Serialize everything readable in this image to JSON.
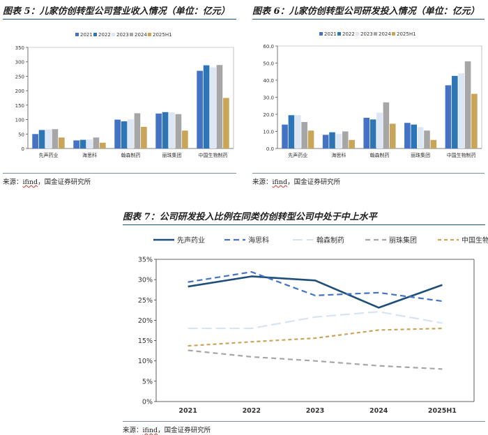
{
  "charts": {
    "left": {
      "title": "图表 5：儿家仿创转型公司营业收入情况（单位：亿元）",
      "source_prefix": "来源：",
      "source_underlined": "ifind",
      "source_suffix": "，国金证券研究所"
    },
    "right": {
      "title": "图表 6：儿家仿创转型公司研发投入情况（单位：亿元）",
      "source_prefix": "来源：",
      "source_underlined": "ifind",
      "source_suffix": "，国金证券研究所"
    },
    "bottom": {
      "title": "图表 7：公司研发投入比例在同类仿创转型公司中处于中上水平",
      "source_prefix": "来源：",
      "source_underlined": "ifind",
      "source_suffix": "，国金证券研究所"
    }
  },
  "colors": {
    "2021": "#4472c4",
    "2022": "#2e75b6",
    "2023": "#dde7f3",
    "2024": "#a6a6a6",
    "2025H1": "#c9a55a",
    "先声药业": "#1f4e79",
    "海思科": "#4472c4",
    "翰森制药": "#d6e4f2",
    "丽珠集团": "#a6a6a6",
    "中国生物制药": "#c9a55a"
  },
  "chart_data": [
    {
      "type": "bar",
      "categories": [
        "先声药业",
        "海思科",
        "翰森制药",
        "丽珠集团",
        "中国生物制药"
      ],
      "series": [
        {
          "name": "2021",
          "values": [
            50,
            28,
            100,
            121,
            269
          ]
        },
        {
          "name": "2022",
          "values": [
            64,
            30,
            94,
            126,
            288
          ]
        },
        {
          "name": "2023",
          "values": [
            66,
            31,
            101,
            125,
            281
          ]
        },
        {
          "name": "2024",
          "values": [
            67,
            38,
            122,
            119,
            289
          ]
        },
        {
          "name": "2025H1",
          "values": [
            38,
            20,
            75,
            62,
            175
          ]
        }
      ],
      "ylim": [
        0,
        350
      ],
      "yticks": [
        "0",
        "50",
        "100",
        "150",
        "200",
        "250",
        "300",
        "350"
      ],
      "legend": "top"
    },
    {
      "type": "bar",
      "categories": [
        "先声药业",
        "海思科",
        "翰森制药",
        "丽珠集团",
        "中国生物制药"
      ],
      "series": [
        {
          "name": "2021",
          "values": [
            14,
            8,
            18,
            15,
            37
          ]
        },
        {
          "name": "2022",
          "values": [
            19.5,
            9.5,
            17,
            14,
            42.5
          ]
        },
        {
          "name": "2023",
          "values": [
            19.5,
            8.5,
            21,
            12.5,
            44
          ]
        },
        {
          "name": "2024",
          "values": [
            15.5,
            10,
            27,
            10.5,
            51
          ]
        },
        {
          "name": "2025H1",
          "values": [
            10.5,
            5,
            14.5,
            5,
            32
          ]
        }
      ],
      "ylim": [
        0,
        60
      ],
      "yticks": [
        "0.0",
        "10.0",
        "20.0",
        "30.0",
        "40.0",
        "50.0",
        "60.0"
      ],
      "legend": "top"
    },
    {
      "type": "line",
      "x": [
        "2021",
        "2022",
        "2023",
        "2024",
        "2025H1"
      ],
      "series": [
        {
          "name": "先声药业",
          "values": [
            28.3,
            30.8,
            29.8,
            23.1,
            28.7
          ]
        },
        {
          "name": "海思科",
          "values": [
            29.4,
            31.9,
            26.1,
            26.8,
            24.7
          ]
        },
        {
          "name": "翰森制药",
          "values": [
            18.0,
            18.0,
            20.8,
            22.1,
            19.3
          ]
        },
        {
          "name": "丽珠集团",
          "values": [
            12.6,
            11.0,
            10.0,
            8.8,
            8.0
          ]
        },
        {
          "name": "中国生物制药",
          "values": [
            13.7,
            14.7,
            15.6,
            17.6,
            18.0
          ]
        }
      ],
      "ylim": [
        0,
        35
      ],
      "yticks": [
        "0%",
        "5%",
        "10%",
        "15%",
        "20%",
        "25%",
        "30%",
        "35%"
      ],
      "legend": "top"
    }
  ]
}
